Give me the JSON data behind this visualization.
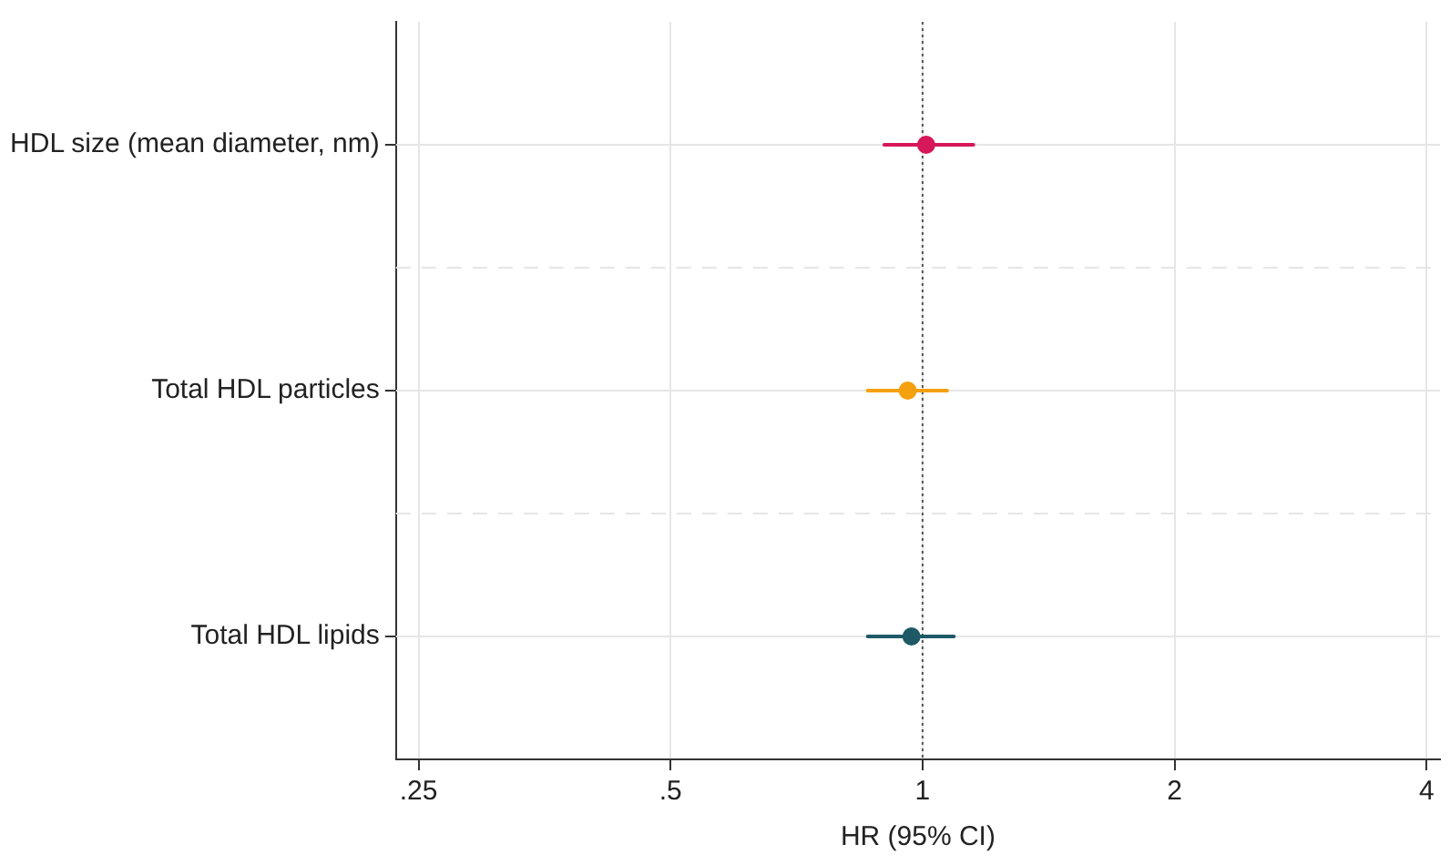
{
  "chart_data": {
    "type": "scatter",
    "orientation": "horizontal",
    "xlabel": "HR (95% CI)",
    "categories": [
      "HDL size (mean diameter, nm)",
      "Total HDL particles",
      "Total HDL lipids"
    ],
    "values": [
      1.01,
      0.96,
      0.97
    ],
    "colors": [
      "#d6175a",
      "#f5a00f",
      "#1e5a66"
    ],
    "errors": [
      [
        0.9,
        1.15
      ],
      [
        0.86,
        1.07
      ],
      [
        0.86,
        1.09
      ]
    ],
    "log": "x",
    "xlim": [
      0.235,
      4.15
    ],
    "xticks": [
      {
        "value": 0.25,
        "label": ".25"
      },
      {
        "value": 0.5,
        "label": ".5"
      },
      1,
      2,
      4
    ],
    "ref_lines": [
      {
        "axis": "x",
        "value": 1,
        "line_style": "dotted",
        "color": "#555555"
      }
    ],
    "grid": true,
    "marker": "circle",
    "legend": false
  }
}
